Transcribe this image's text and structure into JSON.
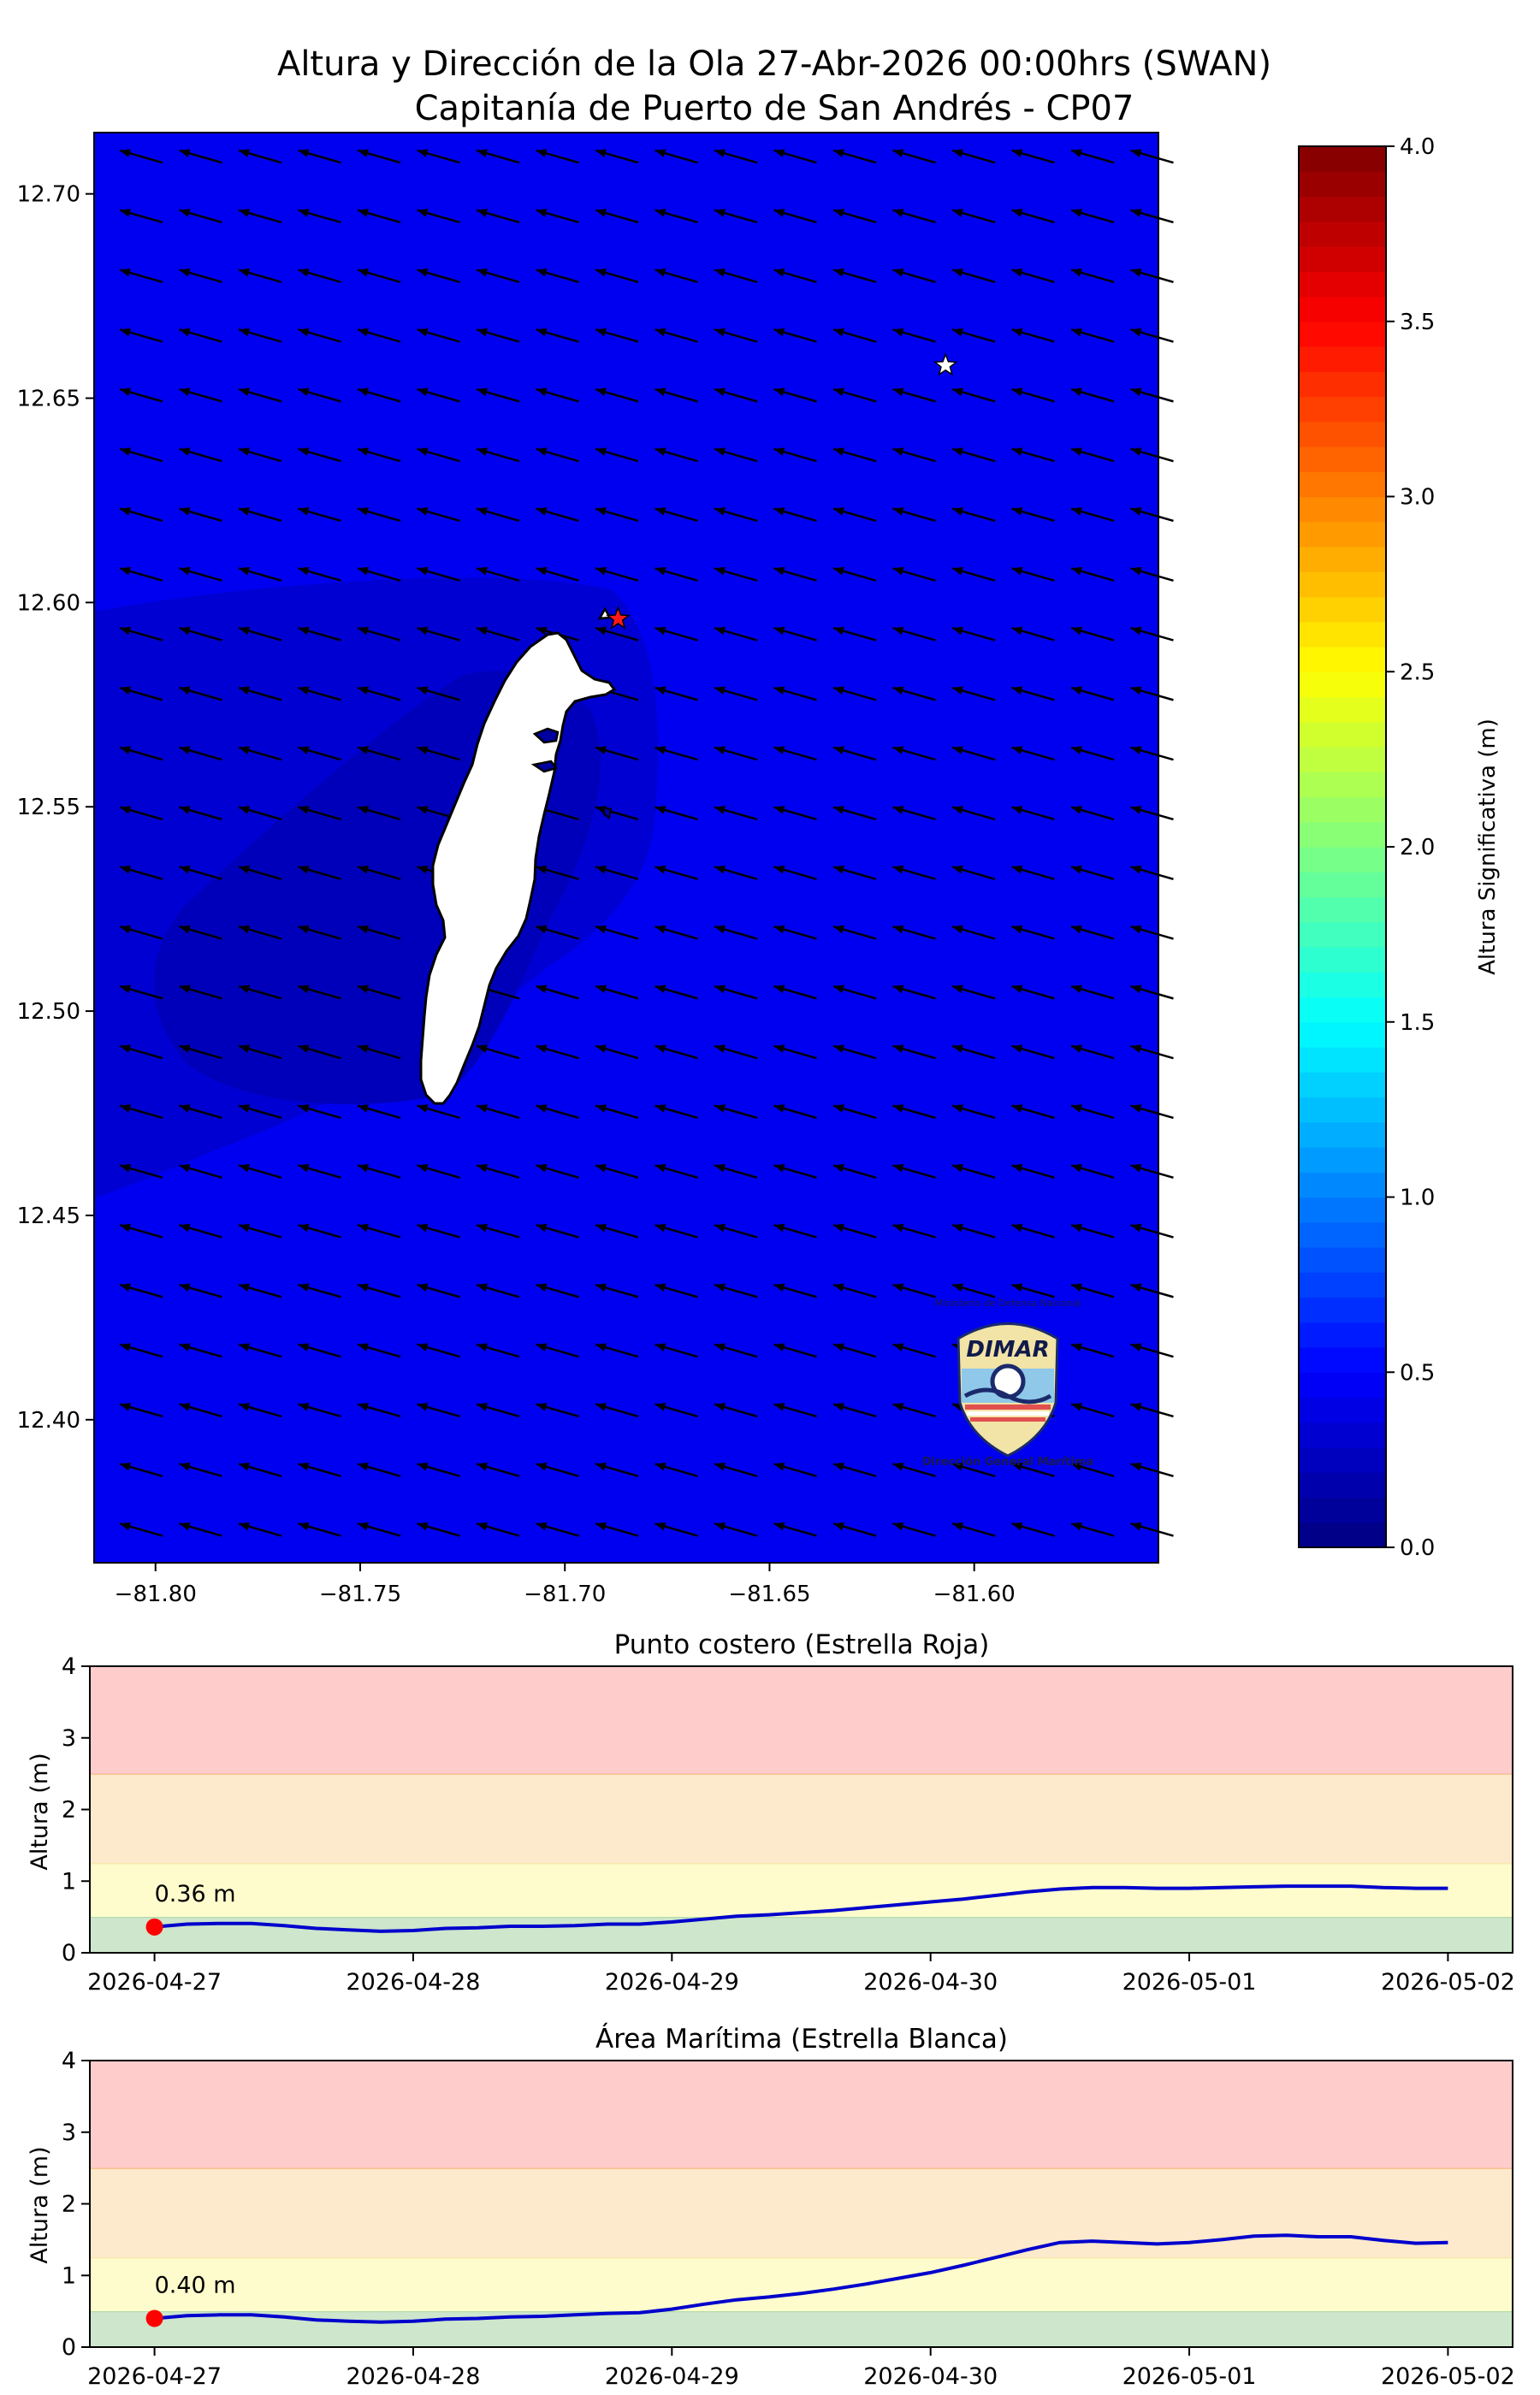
{
  "figure": {
    "title_line1": "Altura y Dirección de la Ola 27-Abr-2026 00:00hrs (SWAN)",
    "title_line2": "Capitanía de Puerto de San Andrés - CP07"
  },
  "logo": {
    "name": "DIMAR",
    "top_text": "Ministerio de Defensa Nacional",
    "bottom_text": "Dirección General Marítima"
  },
  "colors": {
    "sea": "#0000f0",
    "sea_shade1": "#0000d2",
    "sea_shade2": "#0000bb",
    "island": "#ffffff",
    "arrow": "#000000",
    "red_star": "#ff1a1a",
    "white_star": "#ffffff",
    "zone_red": "#ffcccc",
    "zone_orange": "#fde9cc",
    "zone_yellow": "#fefccc",
    "zone_green": "#cde6cc",
    "series_line": "#0000cd",
    "current_marker": "#ff0000"
  },
  "chart_data": [
    {
      "type": "heatmap",
      "title": "Altura y Dirección de la Ola 27-Abr-2026 00:00hrs (SWAN) — Capitanía de Puerto de San Andrés - CP07",
      "xlim": [
        -81.815,
        -81.555
      ],
      "ylim": [
        12.365,
        12.715
      ],
      "x_ticks": [
        -81.8,
        -81.75,
        -81.7,
        -81.65,
        -81.6
      ],
      "x_tick_labels": [
        "−81.80",
        "−81.75",
        "−81.70",
        "−81.65",
        "−81.60"
      ],
      "y_ticks": [
        12.4,
        12.45,
        12.5,
        12.55,
        12.6,
        12.65,
        12.7
      ],
      "y_tick_labels": [
        "12.40",
        "12.45",
        "12.50",
        "12.55",
        "12.60",
        "12.65",
        "12.70"
      ],
      "colorbar": {
        "label": "Altura Significativa (m)",
        "min": 0.0,
        "max": 4.0,
        "ticks": [
          0.0,
          0.5,
          1.0,
          1.5,
          2.0,
          2.5,
          3.0,
          3.5,
          4.0
        ],
        "tick_labels": [
          "0.0",
          "0.5",
          "1.0",
          "1.5",
          "2.0",
          "2.5",
          "3.0",
          "3.5",
          "4.0"
        ],
        "colormap": "jet"
      },
      "dominant_wave_height_m": 0.4,
      "wave_direction": "from east-northeast toward west-southwest",
      "markers": [
        {
          "name": "Estrella Roja",
          "lon": -81.687,
          "lat": 12.596
        },
        {
          "name": "Estrella Blanca",
          "lon": -81.607,
          "lat": 12.658
        }
      ]
    },
    {
      "type": "line",
      "title": "Punto costero (Estrella Roja)",
      "ylabel": "Altura (m)",
      "ylim": [
        0,
        4
      ],
      "y_ticks": [
        0,
        1,
        2,
        3,
        4
      ],
      "x_tick_labels": [
        "2026-04-27",
        "2026-04-28",
        "2026-04-29",
        "2026-04-30",
        "2026-05-01",
        "2026-05-02"
      ],
      "x_unit": "days from 2026-04-27",
      "xlim": [
        -0.25,
        5.25
      ],
      "zones": [
        {
          "from": 0,
          "to": 0.5,
          "color": "green"
        },
        {
          "from": 0.5,
          "to": 1.25,
          "color": "yellow"
        },
        {
          "from": 1.25,
          "to": 2.5,
          "color": "orange"
        },
        {
          "from": 2.5,
          "to": 4,
          "color": "red"
        }
      ],
      "current_label": "0.36 m",
      "current_value": 0.36,
      "x": [
        0,
        0.125,
        0.25,
        0.375,
        0.5,
        0.625,
        0.75,
        0.875,
        1.0,
        1.125,
        1.25,
        1.375,
        1.5,
        1.625,
        1.75,
        1.875,
        2.0,
        2.125,
        2.25,
        2.375,
        2.5,
        2.625,
        2.75,
        2.875,
        3.0,
        3.125,
        3.25,
        3.375,
        3.5,
        3.625,
        3.75,
        3.875,
        4.0,
        4.125,
        4.25,
        4.375,
        4.5,
        4.625,
        4.75,
        4.875,
        5.0
      ],
      "y": [
        0.36,
        0.4,
        0.41,
        0.41,
        0.38,
        0.34,
        0.32,
        0.3,
        0.31,
        0.34,
        0.35,
        0.37,
        0.37,
        0.38,
        0.4,
        0.4,
        0.43,
        0.47,
        0.51,
        0.53,
        0.56,
        0.59,
        0.63,
        0.67,
        0.71,
        0.75,
        0.8,
        0.85,
        0.89,
        0.91,
        0.91,
        0.9,
        0.9,
        0.91,
        0.92,
        0.93,
        0.93,
        0.93,
        0.91,
        0.9,
        0.9
      ]
    },
    {
      "type": "line",
      "title": "Área Marítima (Estrella Blanca)",
      "ylabel": "Altura (m)",
      "ylim": [
        0,
        4
      ],
      "y_ticks": [
        0,
        1,
        2,
        3,
        4
      ],
      "x_tick_labels": [
        "2026-04-27",
        "2026-04-28",
        "2026-04-29",
        "2026-04-30",
        "2026-05-01",
        "2026-05-02"
      ],
      "x_unit": "days from 2026-04-27",
      "xlim": [
        -0.25,
        5.25
      ],
      "zones": [
        {
          "from": 0,
          "to": 0.5,
          "color": "green"
        },
        {
          "from": 0.5,
          "to": 1.25,
          "color": "yellow"
        },
        {
          "from": 1.25,
          "to": 2.5,
          "color": "orange"
        },
        {
          "from": 2.5,
          "to": 4,
          "color": "red"
        }
      ],
      "current_label": "0.40 m",
      "current_value": 0.4,
      "x": [
        0,
        0.125,
        0.25,
        0.375,
        0.5,
        0.625,
        0.75,
        0.875,
        1.0,
        1.125,
        1.25,
        1.375,
        1.5,
        1.625,
        1.75,
        1.875,
        2.0,
        2.125,
        2.25,
        2.375,
        2.5,
        2.625,
        2.75,
        2.875,
        3.0,
        3.125,
        3.25,
        3.375,
        3.5,
        3.625,
        3.75,
        3.875,
        4.0,
        4.125,
        4.25,
        4.375,
        4.5,
        4.625,
        4.75,
        4.875,
        5.0
      ],
      "y": [
        0.4,
        0.44,
        0.45,
        0.45,
        0.42,
        0.38,
        0.36,
        0.35,
        0.36,
        0.39,
        0.4,
        0.42,
        0.43,
        0.45,
        0.47,
        0.48,
        0.53,
        0.6,
        0.66,
        0.7,
        0.75,
        0.81,
        0.88,
        0.96,
        1.04,
        1.14,
        1.25,
        1.36,
        1.46,
        1.48,
        1.46,
        1.44,
        1.46,
        1.5,
        1.55,
        1.56,
        1.54,
        1.54,
        1.49,
        1.45,
        1.46
      ]
    }
  ]
}
